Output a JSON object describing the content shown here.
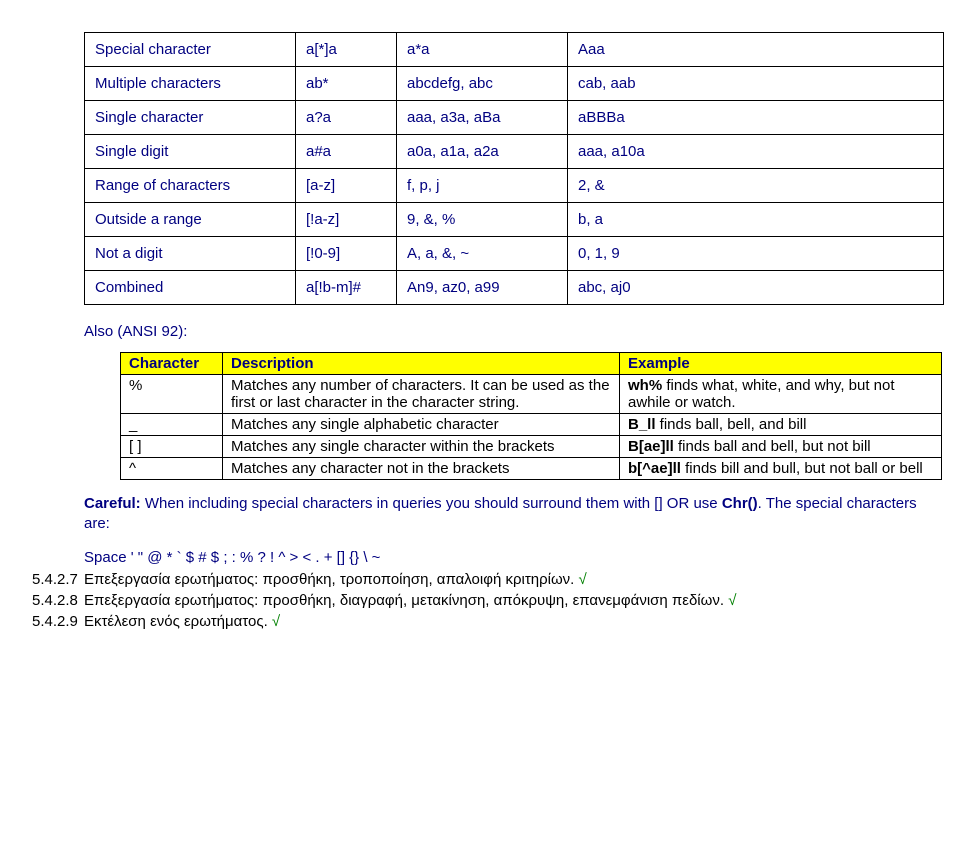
{
  "table1": {
    "rows": [
      {
        "c1": "Special character",
        "c2": "a[*]a",
        "c3": "a*a",
        "c4": "Aaa"
      },
      {
        "c1": "Multiple characters",
        "c2": "ab*",
        "c3": "abcdefg, abc",
        "c4": "cab, aab"
      },
      {
        "c1": "Single character",
        "c2": "a?a",
        "c3": "aaa, a3a, aBa",
        "c4": "aBBBa"
      },
      {
        "c1": "Single digit",
        "c2": "a#a",
        "c3": "a0a, a1a, a2a",
        "c4": "aaa, a10a"
      },
      {
        "c1": "Range of characters",
        "c2": "[a-z]",
        "c3": "f, p, j",
        "c4": "2, &"
      },
      {
        "c1": "Outside a range",
        "c2": "[!a-z]",
        "c3": "9, &, %",
        "c4": "b, a"
      },
      {
        "c1": "Not a digit",
        "c2": "[!0-9]",
        "c3": "A, a, &, ~",
        "c4": "0, 1, 9"
      },
      {
        "c1": "Combined",
        "c2": "a[!b-m]#",
        "c3": "An9, az0, a99",
        "c4": "abc, aj0"
      }
    ]
  },
  "also_label": "Also (ANSI 92):",
  "table2": {
    "headers": {
      "h1": "Character",
      "h2": "Description",
      "h3": "Example"
    },
    "rows": [
      {
        "char": "%",
        "desc": "Matches any number of characters. It can be used as the first or last character in the character string.",
        "ex_b": "wh%",
        "ex_rest": " finds what, white, and why, but not awhile or watch."
      },
      {
        "char": "_",
        "desc": "Matches any single alphabetic character",
        "ex_b": "B_ll",
        "ex_rest": " finds ball, bell, and bill"
      },
      {
        "char": "[ ]",
        "desc": "Matches any single character within the brackets",
        "ex_b": "B[ae]ll",
        "ex_rest": " finds ball and bell, but not bill"
      },
      {
        "char": "^",
        "desc": "Matches any character not in the brackets",
        "ex_b": "b[^ae]ll",
        "ex_rest": " finds bill and bull, but not ball or bell"
      }
    ]
  },
  "careful_prefix": "Careful:",
  "careful_text": " When including special characters in queries you should surround them with [] OR use ",
  "careful_chr": "Chr()",
  "careful_suffix": ". The special characters are:",
  "specials_line": "Space  '  \"  @  *  `  $  #  $  ;  :  %  ?  !  ^  >  <  .  +  []  {}  \\  ~",
  "numbered": [
    {
      "num": "5.4.2.7",
      "txt": "Επεξεργασία ερωτήματος: προσθήκη, τροποποίηση, απαλοιφή κριτηρίων. "
    },
    {
      "num": "5.4.2.8",
      "txt": "Επεξεργασία ερωτήματος: προσθήκη, διαγραφή, μετακίνηση, απόκρυψη, επανεμφάνιση πεδίων. "
    },
    {
      "num": "5.4.2.9",
      "txt": "Εκτέλεση ενός ερωτήματος. "
    }
  ],
  "checkmark": "√"
}
